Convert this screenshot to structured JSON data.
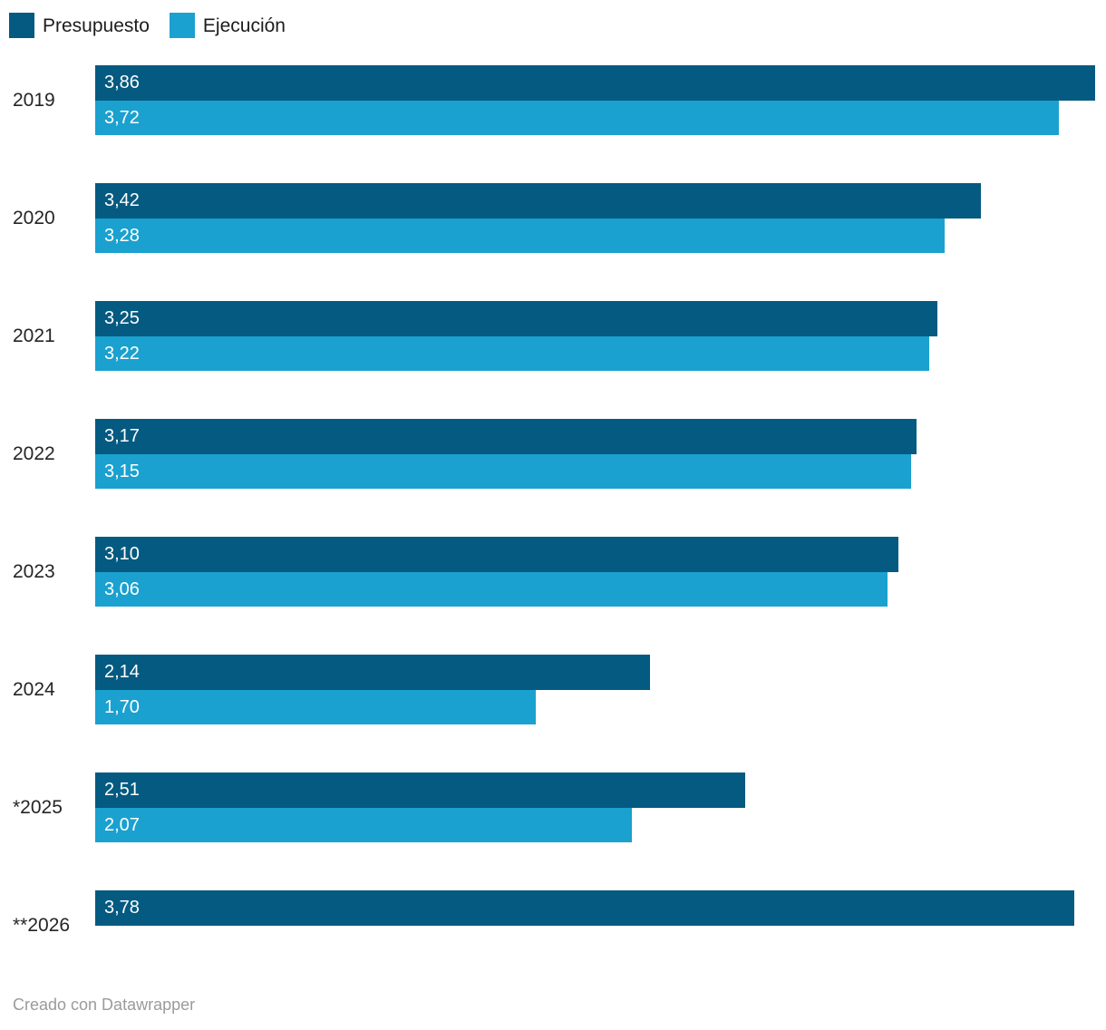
{
  "chart_data": {
    "type": "bar",
    "orientation": "horizontal",
    "title": "",
    "categories": [
      "2019",
      "2020",
      "2021",
      "2022",
      "2023",
      "2024",
      "*2025",
      "**2026"
    ],
    "series": [
      {
        "name": "Presupuesto",
        "color": "#045a80",
        "values": [
          3.86,
          3.42,
          3.25,
          3.17,
          3.1,
          2.14,
          2.51,
          3.78
        ],
        "labels": [
          "3,86",
          "3,42",
          "3,25",
          "3,17",
          "3,10",
          "2,14",
          "2,51",
          "3,78"
        ]
      },
      {
        "name": "Ejecución",
        "color": "#1aa1cf",
        "values": [
          3.72,
          3.28,
          3.22,
          3.15,
          3.06,
          1.7,
          2.07,
          null
        ],
        "labels": [
          "3,72",
          "3,28",
          "3,22",
          "3,15",
          "3,06",
          "1,70",
          "2,07",
          null
        ]
      }
    ],
    "xlim": [
      0,
      3.86
    ],
    "grid": false,
    "legend_position": "top-left",
    "value_label_format": "comma-decimal",
    "value_labels_inside_bars": true
  },
  "footer": {
    "credit": "Creado con Datawrapper"
  }
}
